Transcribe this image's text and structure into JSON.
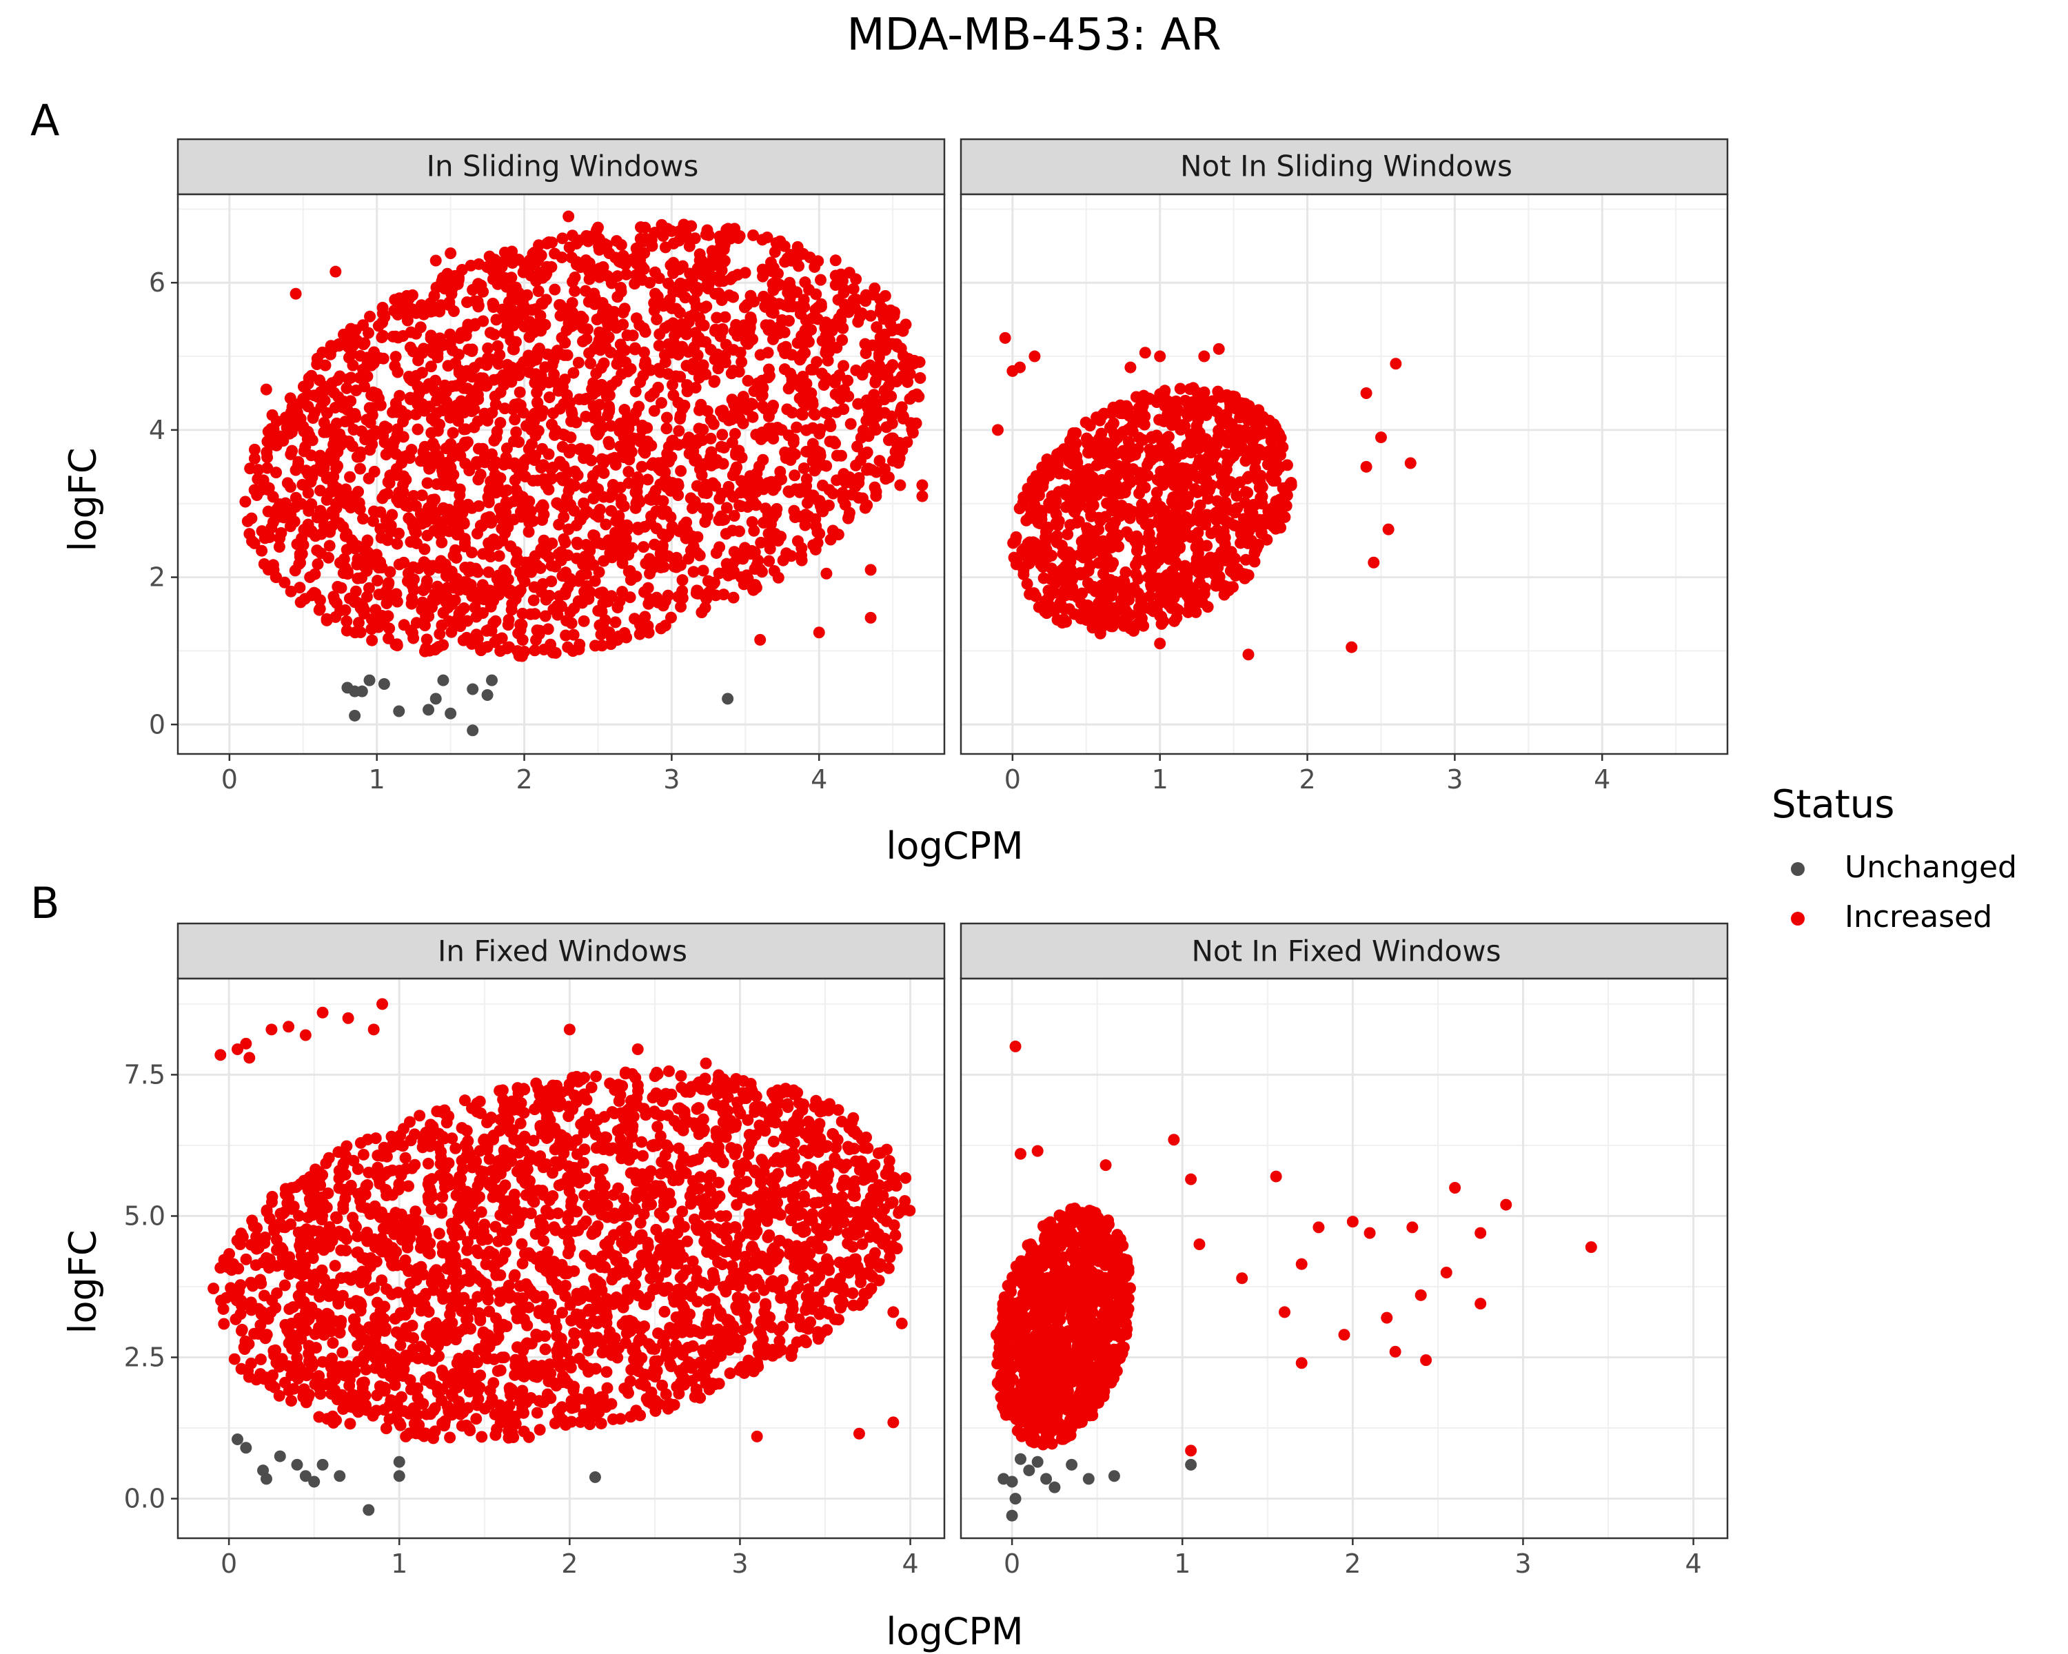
{
  "title": "MDA-MB-453: AR",
  "legend": {
    "title": "Status",
    "items": [
      {
        "label": "Unchanged",
        "color": "#4d4d4d"
      },
      {
        "label": "Increased",
        "color": "#ee0000"
      }
    ]
  },
  "rows": [
    {
      "tag": "A",
      "xlabel": "logCPM",
      "ylabel": "logFC",
      "panels": [
        {
          "strip": "In Sliding Windows"
        },
        {
          "strip": "Not In Sliding Windows"
        }
      ]
    },
    {
      "tag": "B",
      "xlabel": "logCPM",
      "ylabel": "logFC",
      "panels": [
        {
          "strip": "In Fixed Windows"
        },
        {
          "strip": "Not In Fixed Windows"
        }
      ]
    }
  ],
  "chart_data": [
    {
      "type": "scatter",
      "panel": "A / In Sliding Windows",
      "xlabel": "logCPM",
      "ylabel": "logFC",
      "xlim": [
        -0.35,
        4.85
      ],
      "ylim": [
        -0.4,
        7.2
      ],
      "xticks": [
        0,
        1,
        2,
        3,
        4
      ],
      "yticks": [
        0,
        2,
        4,
        6
      ],
      "ytick_labels": [
        "0",
        "2",
        "4",
        "6"
      ],
      "grid": true,
      "series": [
        {
          "name": "Increased",
          "color": "#ee0000",
          "cloud": {
            "x": [
              0.1,
              4.7
            ],
            "y": [
              0.7,
              7.0
            ],
            "description": "dense"
          },
          "points": [
            [
              0.45,
              5.85
            ],
            [
              0.72,
              6.15
            ],
            [
              1.4,
              6.3
            ],
            [
              1.5,
              6.4
            ],
            [
              2.3,
              6.9
            ],
            [
              2.5,
              6.75
            ],
            [
              3.0,
              6.7
            ],
            [
              3.4,
              6.6
            ],
            [
              3.8,
              6.0
            ],
            [
              4.2,
              5.6
            ],
            [
              4.35,
              5.55
            ],
            [
              4.6,
              4.65
            ],
            [
              4.7,
              3.25
            ],
            [
              4.7,
              3.1
            ],
            [
              4.55,
              3.25
            ],
            [
              4.35,
              2.1
            ],
            [
              4.35,
              1.45
            ],
            [
              4.05,
              2.05
            ],
            [
              4.0,
              1.25
            ],
            [
              3.6,
              1.15
            ],
            [
              0.3,
              2.1
            ],
            [
              0.15,
              2.8
            ],
            [
              0.25,
              4.55
            ]
          ]
        },
        {
          "name": "Unchanged",
          "color": "#4d4d4d",
          "points": [
            [
              0.8,
              0.5
            ],
            [
              0.85,
              0.45
            ],
            [
              0.85,
              0.12
            ],
            [
              0.9,
              0.45
            ],
            [
              0.95,
              0.6
            ],
            [
              1.05,
              0.55
            ],
            [
              1.15,
              0.18
            ],
            [
              1.35,
              0.2
            ],
            [
              1.4,
              0.35
            ],
            [
              1.45,
              0.6
            ],
            [
              1.5,
              0.15
            ],
            [
              1.65,
              0.48
            ],
            [
              1.65,
              -0.08
            ],
            [
              1.75,
              0.4
            ],
            [
              1.78,
              0.6
            ],
            [
              3.38,
              0.35
            ]
          ]
        }
      ]
    },
    {
      "type": "scatter",
      "panel": "A / Not In Sliding Windows",
      "xlabel": "logCPM",
      "ylabel": "logFC",
      "xlim": [
        -0.35,
        4.85
      ],
      "ylim": [
        -0.4,
        7.2
      ],
      "xticks": [
        0,
        1,
        2,
        3,
        4
      ],
      "yticks": [
        0,
        2,
        4,
        6
      ],
      "ytick_labels": [
        "0",
        "2",
        "4",
        "6"
      ],
      "grid": true,
      "series": [
        {
          "name": "Increased",
          "color": "#ee0000",
          "cloud": {
            "x": [
              0.0,
              1.9
            ],
            "y": [
              1.1,
              4.7
            ],
            "description": "medium"
          },
          "points": [
            [
              -0.1,
              4.0
            ],
            [
              -0.05,
              5.25
            ],
            [
              0.0,
              4.8
            ],
            [
              0.05,
              4.85
            ],
            [
              0.15,
              5.0
            ],
            [
              0.8,
              4.85
            ],
            [
              0.9,
              5.05
            ],
            [
              1.0,
              5.0
            ],
            [
              1.3,
              5.0
            ],
            [
              1.4,
              5.1
            ],
            [
              2.4,
              4.5
            ],
            [
              2.6,
              4.9
            ],
            [
              2.7,
              3.55
            ],
            [
              2.5,
              3.9
            ],
            [
              2.4,
              3.5
            ],
            [
              2.55,
              2.65
            ],
            [
              2.45,
              2.2
            ],
            [
              2.3,
              1.05
            ],
            [
              1.6,
              0.95
            ],
            [
              1.0,
              1.1
            ]
          ]
        },
        {
          "name": "Unchanged",
          "color": "#4d4d4d",
          "points": []
        }
      ]
    },
    {
      "type": "scatter",
      "panel": "B / In Fixed Windows",
      "xlabel": "logCPM",
      "ylabel": "logFC",
      "xlim": [
        -0.3,
        4.2
      ],
      "ylim": [
        -0.7,
        9.2
      ],
      "xticks": [
        0,
        1,
        2,
        3,
        4
      ],
      "yticks": [
        0,
        2.5,
        5,
        7.5
      ],
      "ytick_labels": [
        "0.0",
        "2.5",
        "5.0",
        "7.5"
      ],
      "grid": true,
      "series": [
        {
          "name": "Increased",
          "color": "#ee0000",
          "cloud": {
            "x": [
              -0.1,
              4.0
            ],
            "y": [
              0.8,
              7.8
            ],
            "description": "dense"
          },
          "points": [
            [
              -0.05,
              7.85
            ],
            [
              0.05,
              7.95
            ],
            [
              0.1,
              8.05
            ],
            [
              0.12,
              7.8
            ],
            [
              0.25,
              8.3
            ],
            [
              0.35,
              8.35
            ],
            [
              0.45,
              8.2
            ],
            [
              0.55,
              8.6
            ],
            [
              0.7,
              8.5
            ],
            [
              0.85,
              8.3
            ],
            [
              0.9,
              8.75
            ],
            [
              2.0,
              8.3
            ],
            [
              2.4,
              7.95
            ],
            [
              2.8,
              7.7
            ],
            [
              3.9,
              3.3
            ],
            [
              3.95,
              3.1
            ],
            [
              3.9,
              1.35
            ],
            [
              3.7,
              1.15
            ],
            [
              3.1,
              1.1
            ],
            [
              3.85,
              4.6
            ]
          ]
        },
        {
          "name": "Unchanged",
          "color": "#4d4d4d",
          "points": [
            [
              0.05,
              1.05
            ],
            [
              0.1,
              0.9
            ],
            [
              0.2,
              0.5
            ],
            [
              0.22,
              0.35
            ],
            [
              0.3,
              0.75
            ],
            [
              0.4,
              0.6
            ],
            [
              0.45,
              0.4
            ],
            [
              0.5,
              0.3
            ],
            [
              0.55,
              0.6
            ],
            [
              0.65,
              0.4
            ],
            [
              0.82,
              -0.2
            ],
            [
              1.0,
              0.65
            ],
            [
              1.0,
              0.4
            ],
            [
              2.15,
              0.38
            ]
          ]
        }
      ]
    },
    {
      "type": "scatter",
      "panel": "B / Not In Fixed Windows",
      "xlabel": "logCPM",
      "ylabel": "logFC",
      "xlim": [
        -0.3,
        4.2
      ],
      "ylim": [
        -0.7,
        9.2
      ],
      "xticks": [
        0,
        1,
        2,
        3,
        4
      ],
      "yticks": [
        0,
        2.5,
        5,
        7.5
      ],
      "ytick_labels": [
        "0.0",
        "2.5",
        "5.0",
        "7.5"
      ],
      "grid": true,
      "series": [
        {
          "name": "Increased",
          "color": "#ee0000",
          "cloud": {
            "x": [
              -0.1,
              0.7
            ],
            "y": [
              0.8,
              5.3
            ],
            "description": "medium"
          },
          "points": [
            [
              0.02,
              8.0
            ],
            [
              0.05,
              6.1
            ],
            [
              0.15,
              6.15
            ],
            [
              0.55,
              5.9
            ],
            [
              0.95,
              6.35
            ],
            [
              1.05,
              5.65
            ],
            [
              1.1,
              4.5
            ],
            [
              1.35,
              3.9
            ],
            [
              1.55,
              5.7
            ],
            [
              1.6,
              3.3
            ],
            [
              1.7,
              4.15
            ],
            [
              1.7,
              2.4
            ],
            [
              1.8,
              4.8
            ],
            [
              1.95,
              2.9
            ],
            [
              2.0,
              4.9
            ],
            [
              2.1,
              4.7
            ],
            [
              2.2,
              3.2
            ],
            [
              2.25,
              2.6
            ],
            [
              2.35,
              4.8
            ],
            [
              2.4,
              3.6
            ],
            [
              2.43,
              2.45
            ],
            [
              2.55,
              4.0
            ],
            [
              2.6,
              5.5
            ],
            [
              2.75,
              3.45
            ],
            [
              2.75,
              4.7
            ],
            [
              2.9,
              5.2
            ],
            [
              3.4,
              4.45
            ],
            [
              1.05,
              0.85
            ]
          ]
        },
        {
          "name": "Unchanged",
          "color": "#4d4d4d",
          "points": [
            [
              -0.05,
              0.35
            ],
            [
              0.0,
              0.3
            ],
            [
              0.0,
              -0.3
            ],
            [
              0.02,
              0.0
            ],
            [
              0.05,
              0.7
            ],
            [
              0.1,
              0.5
            ],
            [
              0.15,
              0.65
            ],
            [
              0.2,
              0.35
            ],
            [
              0.25,
              0.2
            ],
            [
              0.35,
              0.6
            ],
            [
              0.45,
              0.35
            ],
            [
              0.6,
              0.4
            ],
            [
              1.05,
              0.6
            ]
          ]
        }
      ]
    }
  ]
}
